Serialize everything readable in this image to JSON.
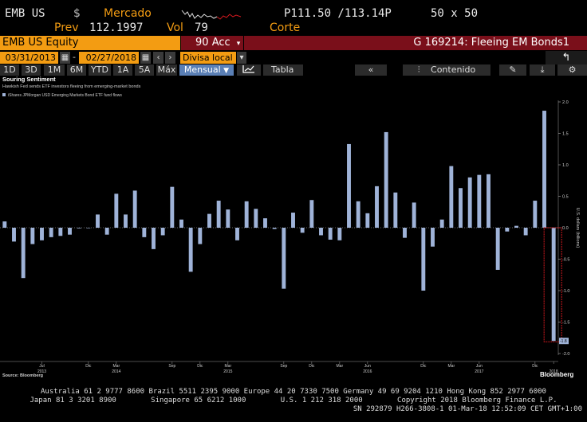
{
  "quote": {
    "ticker": "EMB US",
    "currency": "$",
    "market_label": "Mercado",
    "prev_label": "Prev",
    "prev_value": "112.1997",
    "vol_label": "Vol",
    "vol_value": "79",
    "bid_ask": "P111.50 /113.14P",
    "size": "50 x 50",
    "corte_label": "Corte"
  },
  "titlebar": {
    "security": "EMB US Equity",
    "action_num": "90",
    "action_label": "Acc",
    "function_title": "G 169214: Fleeing EM Bonds1"
  },
  "datebar": {
    "start_date": "03/31/2013",
    "end_date": "02/27/2018",
    "currency_label": "Divisa local"
  },
  "periodbar": {
    "periods": [
      "1D",
      "3D",
      "1M",
      "6M",
      "YTD",
      "1A",
      "5A",
      "Máx"
    ],
    "frequency": "Mensual",
    "table_label": "Tabla",
    "content_label": "Contenido"
  },
  "colors": {
    "bar": "#9fb3d8",
    "highlight": "#d0181e",
    "accent": "#f39c12",
    "brand_red": "#7a0f1a"
  },
  "chart_data": {
    "type": "bar",
    "title": "Souring Sentiment",
    "subtitle": "Hawkish Fed sends ETF investors fleeing from emerging-market bonds",
    "legend": "iShares JPMorgan USD Emerging Markets Bond ETF fund flows",
    "ylabel": "U.S. dollars (billions)",
    "ylim": [
      -2.0,
      2.0
    ],
    "yticks": [
      2.0,
      1.5,
      1.0,
      0.5,
      0.0,
      -0.5,
      -1.0,
      -1.5,
      -2.0
    ],
    "y_tick_labels": [
      "2.0",
      "1.5",
      "1.0",
      "0.5",
      "0.0",
      "-0.5",
      "-1.0",
      "-1.5",
      "-2.0"
    ],
    "last_value_label": "-1.8",
    "source": "Source: Bloomberg",
    "brand": "Bloomberg",
    "x_tick_labels": [
      {
        "month": "Jul",
        "year": "2013"
      },
      {
        "month": "Dic",
        "year": ""
      },
      {
        "month": "Mar",
        "year": "2014"
      },
      {
        "month": "Sep",
        "year": ""
      },
      {
        "month": "Dic",
        "year": ""
      },
      {
        "month": "Mar",
        "year": "2015"
      },
      {
        "month": "Sep",
        "year": ""
      },
      {
        "month": "Dic",
        "year": ""
      },
      {
        "month": "Mar",
        "year": ""
      },
      {
        "month": "Jun",
        "year": "2016"
      },
      {
        "month": "Dic",
        "year": ""
      },
      {
        "month": "Mar",
        "year": ""
      },
      {
        "month": "Jun",
        "year": "2017"
      },
      {
        "month": "Dic",
        "year": ""
      },
      {
        "month": "",
        "year": "2018"
      }
    ],
    "dates": [
      "2013-03",
      "2013-04",
      "2013-05",
      "2013-06",
      "2013-07",
      "2013-08",
      "2013-09",
      "2013-10",
      "2013-11",
      "2013-12",
      "2014-01",
      "2014-02",
      "2014-03",
      "2014-04",
      "2014-05",
      "2014-06",
      "2014-07",
      "2014-08",
      "2014-09",
      "2014-10",
      "2014-11",
      "2014-12",
      "2015-01",
      "2015-02",
      "2015-03",
      "2015-04",
      "2015-05",
      "2015-06",
      "2015-07",
      "2015-08",
      "2015-09",
      "2015-10",
      "2015-11",
      "2015-12",
      "2016-01",
      "2016-02",
      "2016-03",
      "2016-04",
      "2016-05",
      "2016-06",
      "2016-07",
      "2016-08",
      "2016-09",
      "2016-10",
      "2016-11",
      "2016-12",
      "2017-01",
      "2017-02",
      "2017-03",
      "2017-04",
      "2017-05",
      "2017-06",
      "2017-07",
      "2017-08",
      "2017-09",
      "2017-10",
      "2017-11",
      "2017-12",
      "2018-01",
      "2018-02"
    ],
    "values": [
      0.1,
      -0.22,
      -0.8,
      -0.26,
      -0.2,
      -0.15,
      -0.13,
      -0.11,
      -0.01,
      0.0,
      0.21,
      -0.11,
      0.54,
      0.21,
      0.59,
      -0.15,
      -0.34,
      -0.12,
      0.65,
      0.13,
      -0.7,
      -0.26,
      0.22,
      0.43,
      0.29,
      -0.2,
      0.42,
      0.3,
      0.15,
      -0.02,
      -0.97,
      0.24,
      -0.08,
      0.44,
      -0.12,
      -0.19,
      -0.2,
      1.33,
      0.42,
      0.23,
      0.66,
      1.52,
      0.56,
      -0.16,
      0.4,
      -1.0,
      -0.3,
      0.13,
      0.98,
      0.63,
      0.8,
      0.84,
      0.85,
      -0.67,
      -0.06,
      0.03,
      -0.12,
      0.43,
      1.86,
      -1.8
    ]
  },
  "footer": {
    "line1": "Australia 61 2 9777 8600 Brazil 5511 2395 9000 Europe 44 20 7330 7500 Germany 49 69 9204 1210 Hong Kong 852 2977 6000",
    "line2": "Japan 81 3 3201 8900        Singapore 65 6212 1000        U.S. 1 212 318 2000        Copyright 2018 Bloomberg Finance L.P.",
    "line3": "SN 292879 H266-3808-1 01-Mar-18 12:52:09 CET  GMT+1:00"
  }
}
